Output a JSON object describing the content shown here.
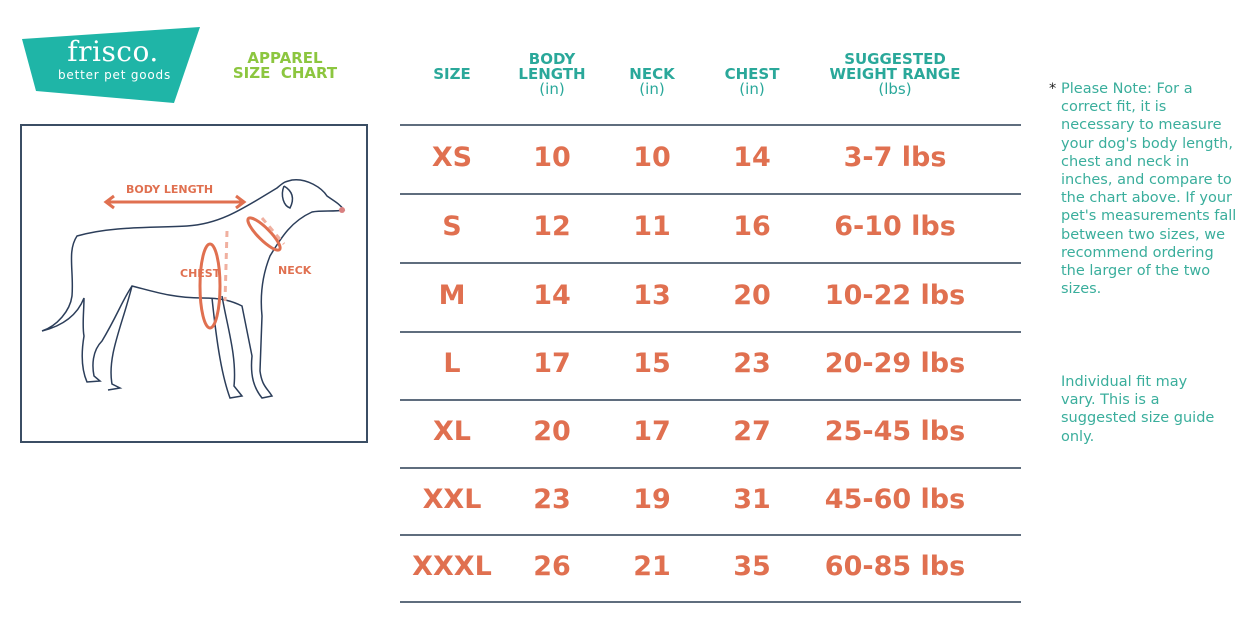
{
  "logo": {
    "brand": "frisco.",
    "tagline": "better pet goods",
    "color": "#1fb5a7"
  },
  "title": {
    "line1": "APPAREL",
    "line2": "SIZE  CHART",
    "color": "#8cc63f"
  },
  "diagram": {
    "labels": {
      "body_length": "BODY LENGTH",
      "chest": "CHEST",
      "neck": "NECK"
    }
  },
  "table": {
    "headers": [
      {
        "label": "SIZE",
        "unit": ""
      },
      {
        "label": "BODY LENGTH",
        "unit": "(in)"
      },
      {
        "label": "NECK",
        "unit": "(in)"
      },
      {
        "label": "CHEST",
        "unit": "(in)"
      },
      {
        "label": "SUGGESTED WEIGHT RANGE",
        "unit": "(lbs)"
      }
    ],
    "rows": [
      [
        "XS",
        "10",
        "10",
        "14",
        "3-7 lbs"
      ],
      [
        "S",
        "12",
        "11",
        "16",
        "6-10 lbs"
      ],
      [
        "M",
        "14",
        "13",
        "20",
        "10-22 lbs"
      ],
      [
        "L",
        "17",
        "15",
        "23",
        "20-29 lbs"
      ],
      [
        "XL",
        "20",
        "17",
        "27",
        "25-45 lbs"
      ],
      [
        "XXL",
        "23",
        "19",
        "31",
        "45-60 lbs"
      ],
      [
        "XXXL",
        "26",
        "21",
        "35",
        "60-85 lbs"
      ]
    ],
    "header_color": "#2aa89a",
    "value_color": "#e07050"
  },
  "note": {
    "star": "*",
    "text": "Please Note: For a correct fit, it is necessary to measure your dog's body length, chest and neck in inches, and compare to the chart above. If your pet's measurements fall between two sizes, we recommend ordering the larger of the two sizes.",
    "disclaimer": "Individual fit may vary. This is a suggested size guide only."
  }
}
